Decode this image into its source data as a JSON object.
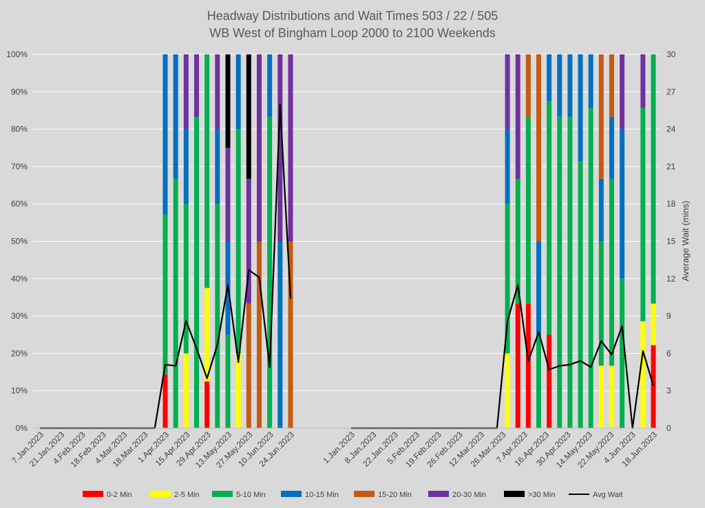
{
  "chart_data": {
    "type": "bar",
    "stacked": true,
    "title_lines": [
      "Headway Distributions and Wait Times 503 / 22 / 505",
      "WB West of Bingham Loop 2000 to 2100 Weekends"
    ],
    "y_left": {
      "min": 0,
      "max": 100,
      "ticks": [
        "0%",
        "10%",
        "20%",
        "30%",
        "40%",
        "50%",
        "60%",
        "70%",
        "80%",
        "90%",
        "100%"
      ]
    },
    "y_right": {
      "title": "Average Wait (mins)",
      "min": 0,
      "max": 30,
      "ticks": [
        "0",
        "3",
        "6",
        "9",
        "12",
        "15",
        "18",
        "21",
        "24",
        "27",
        "30"
      ]
    },
    "legend": [
      {
        "name": "0-2 Min",
        "color": "#ff0000"
      },
      {
        "name": "2-5 Min",
        "color": "#ffff00"
      },
      {
        "name": "5-10 Min",
        "color": "#00b050"
      },
      {
        "name": "10-15 Min",
        "color": "#0070c0"
      },
      {
        "name": "15-20 Min",
        "color": "#c55a11"
      },
      {
        "name": "20-30 Min",
        "color": "#7030a0"
      },
      {
        "name": ">30 Min",
        "color": "#000000"
      },
      {
        "name": "Avg Wait",
        "color": "#000000"
      }
    ],
    "segments": [
      {
        "name": "2023 (left)",
        "x_labels": [
          "7.Jan.2023",
          "21.Jan.2023",
          "4.Feb.2023",
          "18.Feb.2023",
          "4.Mar.2023",
          "18.Mar.2023",
          "1.Apr.2023",
          "15.Apr.2023",
          "29.Apr.2023",
          "13.May.2023",
          "27.May.2023",
          "10.Jun.2023",
          "24.Jun.2023"
        ],
        "n_slots": 25,
        "bars": [
          {
            "slot": 12,
            "stack": [
              14.3,
              0,
              42.9,
              42.8,
              0,
              0,
              0
            ]
          },
          {
            "slot": 13,
            "stack": [
              0,
              0,
              66.7,
              33.3,
              0,
              0,
              0
            ]
          },
          {
            "slot": 14,
            "stack": [
              0,
              20,
              40,
              20,
              0,
              20,
              0
            ]
          },
          {
            "slot": 15,
            "stack": [
              0,
              0,
              83.3,
              0,
              0,
              16.7,
              0
            ]
          },
          {
            "slot": 16,
            "stack": [
              12.5,
              25,
              62.5,
              0,
              0,
              0,
              0
            ]
          },
          {
            "slot": 17,
            "stack": [
              0,
              0,
              60,
              20,
              0,
              20,
              0
            ]
          },
          {
            "slot": 18,
            "stack": [
              0,
              0,
              25,
              25,
              0,
              25,
              25
            ]
          },
          {
            "slot": 19,
            "stack": [
              0,
              20,
              60,
              20,
              0,
              0,
              0
            ]
          },
          {
            "slot": 20,
            "stack": [
              0,
              0,
              0,
              0,
              33.3,
              33.4,
              33.3
            ]
          },
          {
            "slot": 21,
            "stack": [
              0,
              0,
              0,
              0,
              50,
              50,
              0
            ]
          },
          {
            "slot": 22,
            "stack": [
              0,
              0,
              83.3,
              16.7,
              0,
              0,
              0
            ]
          },
          {
            "slot": 23,
            "stack": [
              0,
              0,
              0,
              50,
              0,
              50,
              0
            ]
          },
          {
            "slot": 24,
            "stack": [
              0,
              0,
              0,
              0,
              50,
              50,
              0
            ]
          }
        ],
        "avg_wait": [
          0,
          0,
          0,
          0,
          0,
          0,
          0,
          0,
          0,
          0,
          0,
          0,
          5.1,
          5.0,
          8.6,
          6.4,
          4.0,
          6.7,
          11.5,
          5.3,
          12.7,
          12.1,
          4.9,
          26.0,
          10.4
        ]
      },
      {
        "name": "2023 (right)",
        "x_labels": [
          "1.Jan.2023",
          "8.Jan.2023",
          "22.Jan.2023",
          "5.Feb.2023",
          "19.Feb.2023",
          "26.Feb.2023",
          "12.Mar.2023",
          "26.Mar.2023",
          "7.Apr.2023",
          "16.Apr.2023",
          "30.Apr.2023",
          "14.May.2023",
          "22.May.2023",
          "4.Jun.2023",
          "18.Jun.2023"
        ],
        "n_slots": 30,
        "bars": [
          {
            "slot": 15,
            "stack": [
              0,
              20,
              40,
              20,
              0,
              20,
              0
            ]
          },
          {
            "slot": 16,
            "stack": [
              33.3,
              0,
              33.4,
              0,
              0,
              33.3,
              0
            ]
          },
          {
            "slot": 17,
            "stack": [
              33.3,
              0,
              50,
              0,
              16.7,
              0,
              0
            ]
          },
          {
            "slot": 18,
            "stack": [
              0,
              0,
              25,
              25,
              50,
              0,
              0
            ]
          },
          {
            "slot": 19,
            "stack": [
              25,
              0,
              62.5,
              12.5,
              0,
              0,
              0
            ]
          },
          {
            "slot": 20,
            "stack": [
              0,
              0,
              83.3,
              16.7,
              0,
              0,
              0
            ]
          },
          {
            "slot": 21,
            "stack": [
              0,
              0,
              83.3,
              16.7,
              0,
              0,
              0
            ]
          },
          {
            "slot": 22,
            "stack": [
              0,
              0,
              71.4,
              28.6,
              0,
              0,
              0
            ]
          },
          {
            "slot": 23,
            "stack": [
              0,
              0,
              85.7,
              14.3,
              0,
              0,
              0
            ]
          },
          {
            "slot": 24,
            "stack": [
              0,
              16.7,
              33.3,
              16.7,
              33.3,
              0,
              0
            ]
          },
          {
            "slot": 25,
            "stack": [
              0,
              16.7,
              50,
              16.6,
              16.7,
              0,
              0
            ]
          },
          {
            "slot": 26,
            "stack": [
              0,
              0,
              40,
              40,
              0,
              20,
              0
            ]
          },
          {
            "slot": 28,
            "stack": [
              0,
              28.6,
              57.1,
              0,
              0,
              14.3,
              0
            ]
          },
          {
            "slot": 29,
            "stack": [
              22.2,
              11.1,
              66.7,
              0,
              0,
              0,
              0
            ]
          }
        ],
        "avg_wait": [
          0,
          0,
          0,
          0,
          0,
          0,
          0,
          0,
          0,
          0,
          0,
          0,
          0,
          0,
          0,
          8.6,
          11.5,
          5.4,
          7.7,
          4.7,
          5.0,
          5.1,
          5.4,
          4.9,
          7.0,
          5.9,
          8.2,
          0,
          6.2,
          3.4
        ]
      }
    ]
  }
}
